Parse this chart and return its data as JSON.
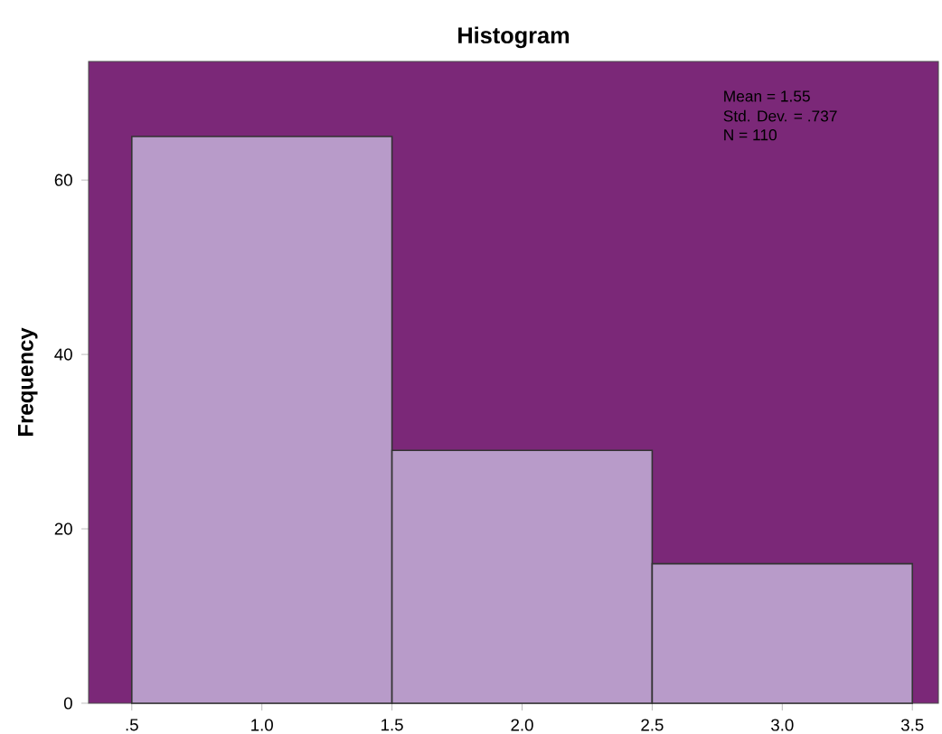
{
  "chart_data": {
    "type": "histogram",
    "title": "Histogram",
    "ylabel": "Frequency",
    "bins": [
      0.5,
      1.5,
      2.5,
      3.5
    ],
    "values": [
      65,
      29,
      16
    ],
    "color": "#b89bc9",
    "xlim": [
      0.334,
      3.6
    ],
    "ylim": [
      0,
      73.6
    ],
    "xticks": [
      {
        "value": 0.5,
        "label": ".5"
      },
      {
        "value": 1.0,
        "label": "1.0"
      },
      {
        "value": 1.5,
        "label": "1.5"
      },
      {
        "value": 2.0,
        "label": "2.0"
      },
      {
        "value": 2.5,
        "label": "2.5"
      },
      {
        "value": 3.0,
        "label": "3.0"
      },
      {
        "value": 3.5,
        "label": "3.5"
      }
    ],
    "yticks": [
      0,
      20,
      40,
      60
    ],
    "annotations": [
      "Mean = 1.55",
      "Std. Dev. = .737",
      "N = 110"
    ]
  }
}
